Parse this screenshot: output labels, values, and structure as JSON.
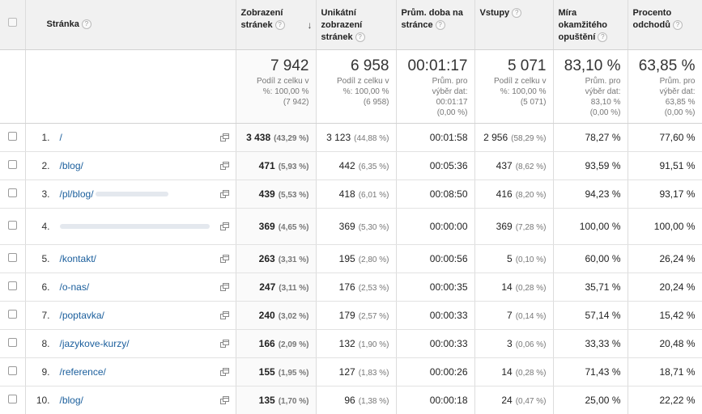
{
  "headers": {
    "page": "Stránka",
    "pageviews": "Zobrazení stránek",
    "unique": "Unikátní zobrazení stránek",
    "avg_time": "Prům. doba na stránce",
    "entrances": "Vstupy",
    "bounce": "Míra okamžitého opuštění",
    "exit": "Procento odchodů",
    "help": "?",
    "sort": "↓"
  },
  "totals": {
    "pageviews": {
      "value": "7 942",
      "line1": "Podíl z celku v",
      "line2": "%: 100,00 %",
      "line3": "(7 942)"
    },
    "unique": {
      "value": "6 958",
      "line1": "Podíl z celku v",
      "line2": "%: 100,00 %",
      "line3": "(6 958)"
    },
    "avg_time": {
      "value": "00:01:17",
      "line1": "Prům. pro",
      "line2": "výběr dat:",
      "line3": "00:01:17",
      "line4": "(0,00 %)"
    },
    "entrances": {
      "value": "5 071",
      "line1": "Podíl z celku v",
      "line2": "%: 100,00 %",
      "line3": "(5 071)"
    },
    "bounce": {
      "value": "83,10 %",
      "line1": "Prům. pro",
      "line2": "výběr dat:",
      "line3": "83,10 %",
      "line4": "(0,00 %)"
    },
    "exit": {
      "value": "63,85 %",
      "line1": "Prům. pro",
      "line2": "výběr dat:",
      "line3": "63,85 %",
      "line4": "(0,00 %)"
    }
  },
  "rows": [
    {
      "num": "1.",
      "page": "/",
      "pv": "3 438",
      "pv_pct": "(43,29 %)",
      "uq": "3 123",
      "uq_pct": "(44,88 %)",
      "time": "00:01:58",
      "ent": "2 956",
      "ent_pct": "(58,29 %)",
      "bounce": "78,27 %",
      "exit": "77,60 %"
    },
    {
      "num": "2.",
      "page": "/blog/",
      "pv": "471",
      "pv_pct": "(5,93 %)",
      "uq": "442",
      "uq_pct": "(6,35 %)",
      "time": "00:05:36",
      "ent": "437",
      "ent_pct": "(8,62 %)",
      "bounce": "93,59 %",
      "exit": "91,51 %"
    },
    {
      "num": "3.",
      "page": "/pl/blog/",
      "pv": "439",
      "pv_pct": "(5,53 %)",
      "uq": "418",
      "uq_pct": "(6,01 %)",
      "time": "00:08:50",
      "ent": "416",
      "ent_pct": "(8,20 %)",
      "bounce": "94,23 %",
      "exit": "93,17 %"
    },
    {
      "num": "4.",
      "page": "",
      "pv": "369",
      "pv_pct": "(4,65 %)",
      "uq": "369",
      "uq_pct": "(5,30 %)",
      "time": "00:00:00",
      "ent": "369",
      "ent_pct": "(7,28 %)",
      "bounce": "100,00 %",
      "exit": "100,00 %"
    },
    {
      "num": "5.",
      "page": "/kontakt/",
      "pv": "263",
      "pv_pct": "(3,31 %)",
      "uq": "195",
      "uq_pct": "(2,80 %)",
      "time": "00:00:56",
      "ent": "5",
      "ent_pct": "(0,10 %)",
      "bounce": "60,00 %",
      "exit": "26,24 %"
    },
    {
      "num": "6.",
      "page": "/o-nas/",
      "pv": "247",
      "pv_pct": "(3,11 %)",
      "uq": "176",
      "uq_pct": "(2,53 %)",
      "time": "00:00:35",
      "ent": "14",
      "ent_pct": "(0,28 %)",
      "bounce": "35,71 %",
      "exit": "20,24 %"
    },
    {
      "num": "7.",
      "page": "/poptavka/",
      "pv": "240",
      "pv_pct": "(3,02 %)",
      "uq": "179",
      "uq_pct": "(2,57 %)",
      "time": "00:00:33",
      "ent": "7",
      "ent_pct": "(0,14 %)",
      "bounce": "57,14 %",
      "exit": "15,42 %"
    },
    {
      "num": "8.",
      "page": "/jazykove-kurzy/",
      "pv": "166",
      "pv_pct": "(2,09 %)",
      "uq": "132",
      "uq_pct": "(1,90 %)",
      "time": "00:00:33",
      "ent": "3",
      "ent_pct": "(0,06 %)",
      "bounce": "33,33 %",
      "exit": "20,48 %"
    },
    {
      "num": "9.",
      "page": "/reference/",
      "pv": "155",
      "pv_pct": "(1,95 %)",
      "uq": "127",
      "uq_pct": "(1,83 %)",
      "time": "00:00:26",
      "ent": "14",
      "ent_pct": "(0,28 %)",
      "bounce": "71,43 %",
      "exit": "18,71 %"
    },
    {
      "num": "10.",
      "page": "/blog/",
      "pv": "135",
      "pv_pct": "(1,70 %)",
      "uq": "96",
      "uq_pct": "(1,38 %)",
      "time": "00:00:18",
      "ent": "24",
      "ent_pct": "(0,47 %)",
      "bounce": "25,00 %",
      "exit": "22,22 %"
    }
  ],
  "colors": {
    "link": "#1a5e9c",
    "header_bg": "#f1f1f1",
    "selected_col_bg": "#fafafa"
  },
  "icons": {
    "row_action": "open-in-new-window-icon"
  }
}
